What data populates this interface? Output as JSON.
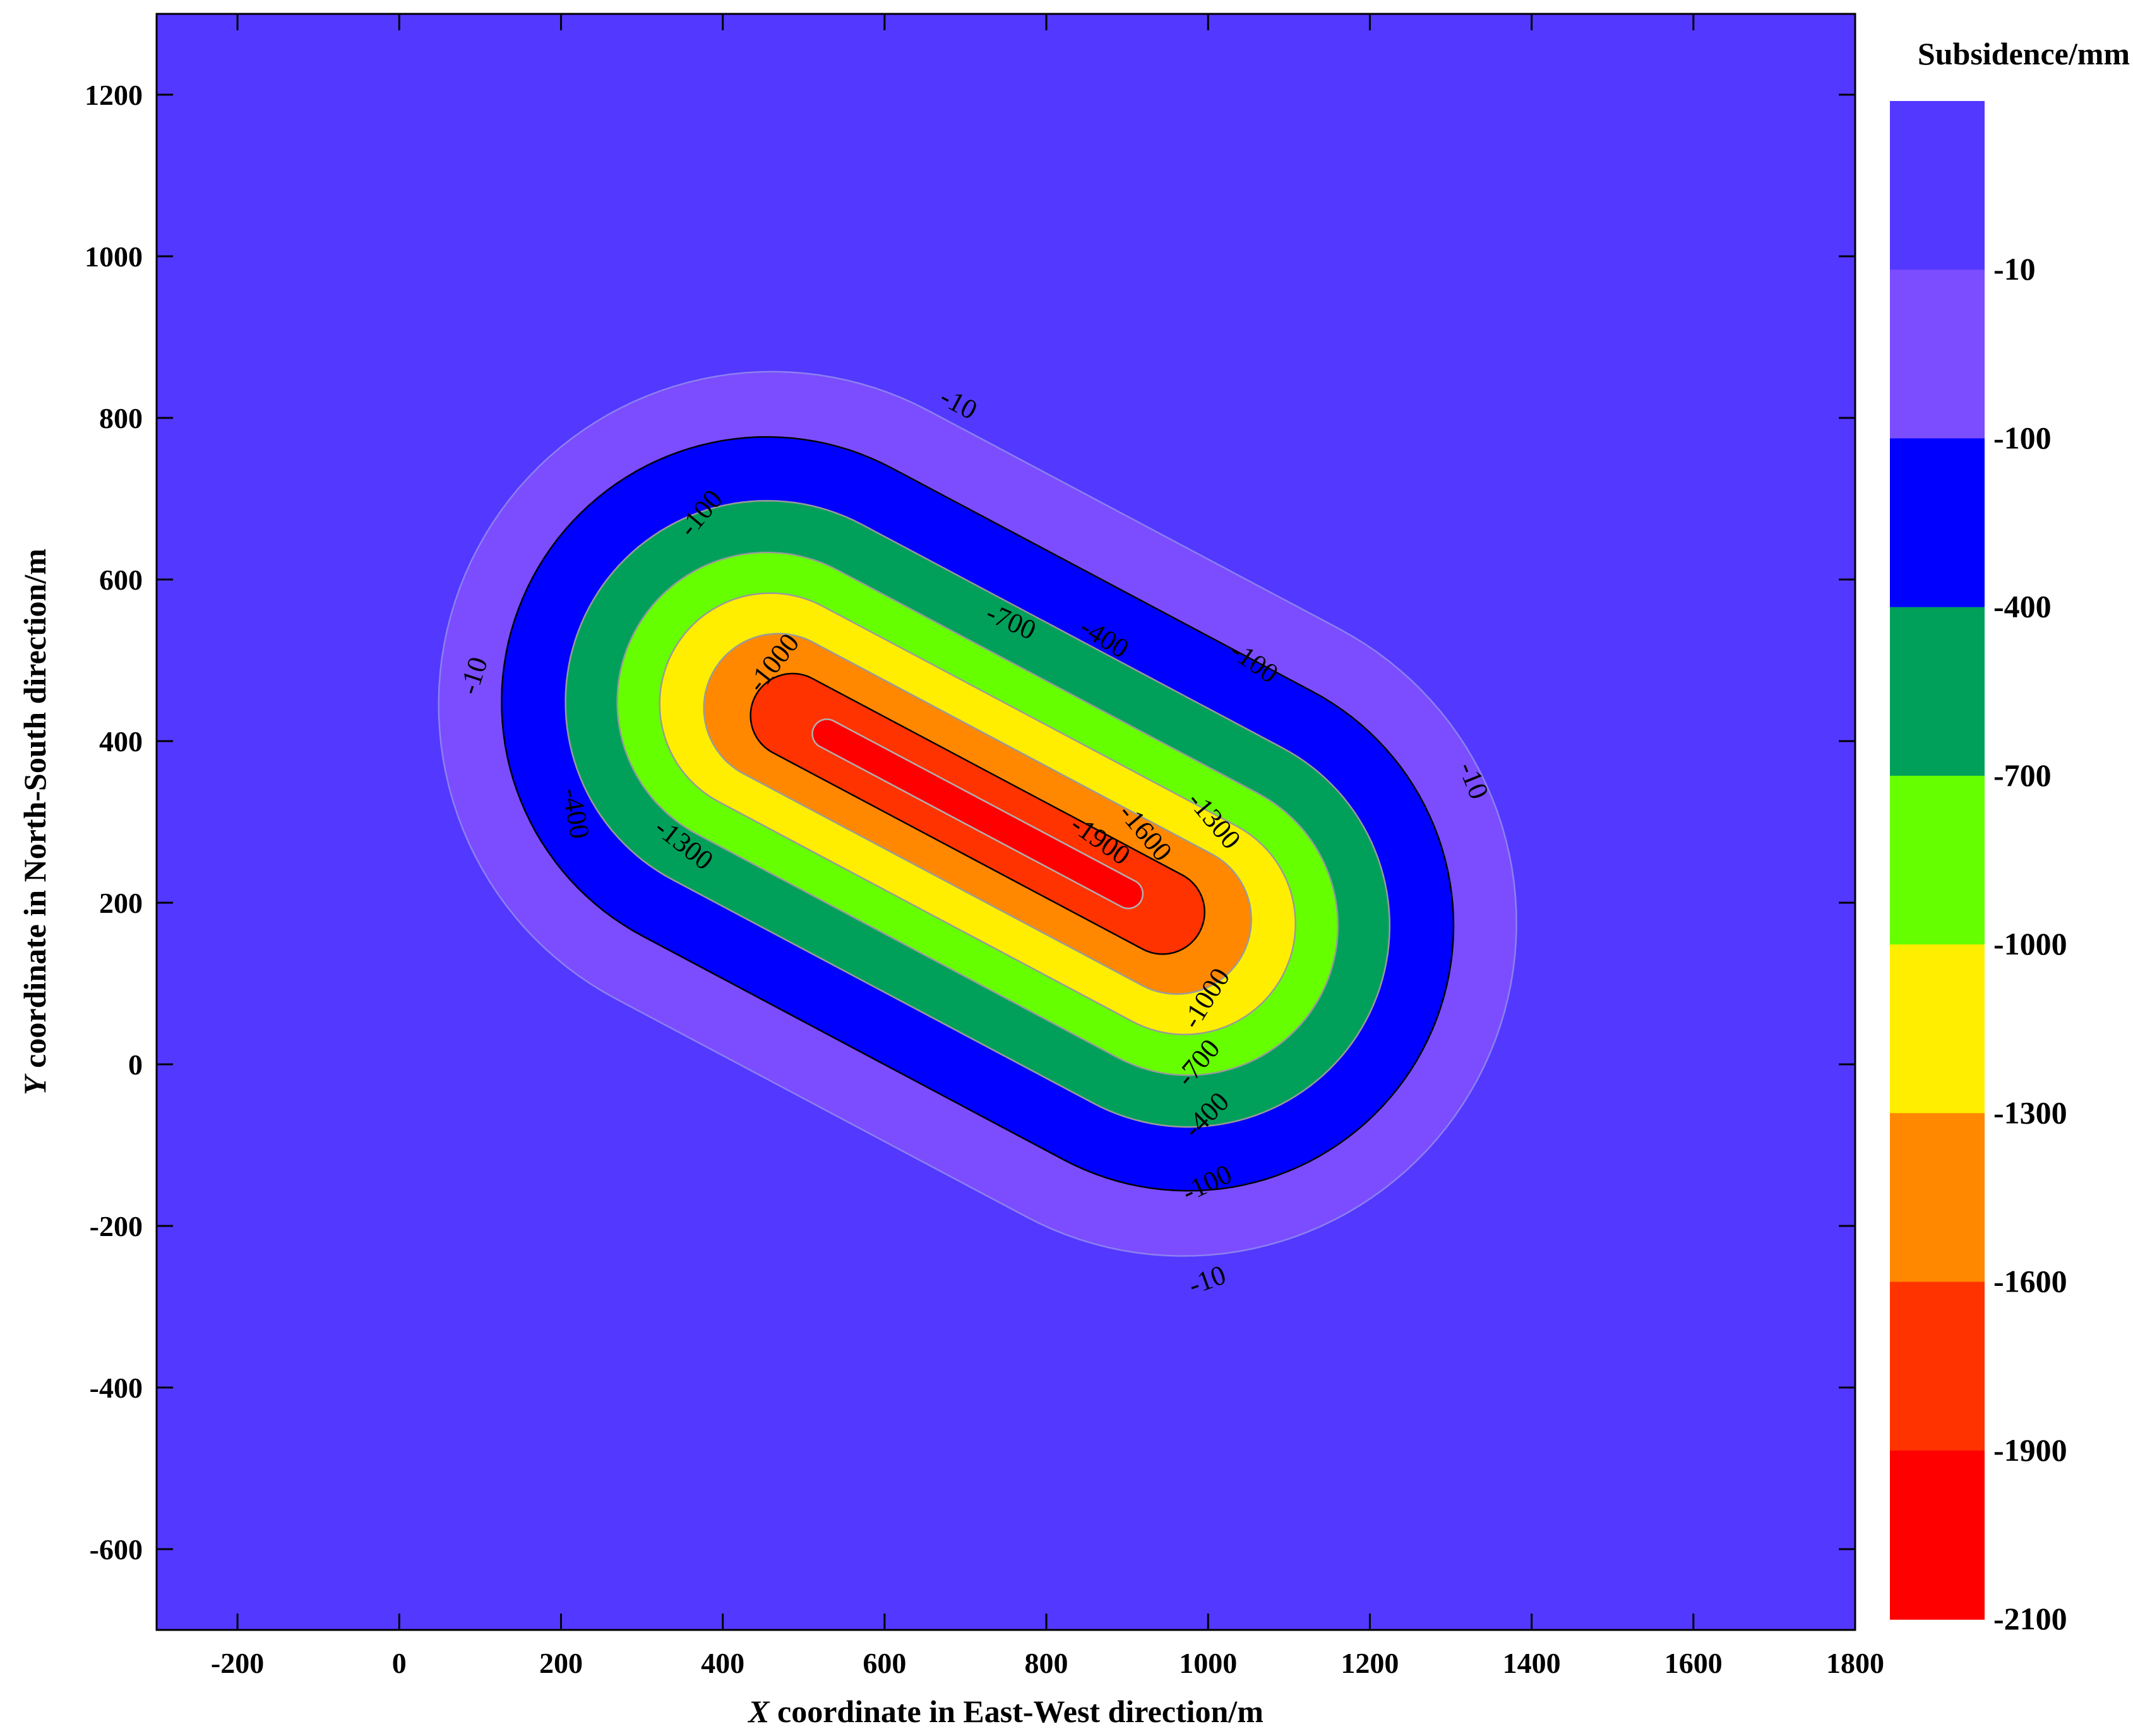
{
  "chart_data": {
    "type": "contour",
    "title": "",
    "xlabel_var": "X",
    "xlabel": " coordinate in East-West direction/m",
    "ylabel_var": "Y",
    "ylabel": " coordinate in North-South direction/m",
    "xlim": [
      -300,
      1800
    ],
    "ylim": [
      -700,
      1300
    ],
    "x_ticks": [
      -200,
      0,
      200,
      400,
      600,
      800,
      1000,
      1200,
      1400,
      1600,
      1800
    ],
    "y_ticks": [
      -600,
      -400,
      -200,
      0,
      200,
      400,
      600,
      800,
      1000,
      1200
    ],
    "subsidence_field": {
      "center_x": 715,
      "center_y": 310,
      "rotation_deg": 28,
      "description": "subsidence basin elongated along NW-SE axis"
    },
    "contours": [
      {
        "level": -10,
        "half_length": 700,
        "half_width": 412
      },
      {
        "level": -100,
        "half_length": 623,
        "half_width": 328
      },
      {
        "level": -400,
        "half_length": 544,
        "half_width": 249
      },
      {
        "level": -700,
        "half_length": 480,
        "half_width": 185
      },
      {
        "level": -1000,
        "half_length": 427,
        "half_width": 137
      },
      {
        "level": -1300,
        "half_length": 371,
        "half_width": 92
      },
      {
        "level": -1600,
        "half_length": 311,
        "half_width": 52
      },
      {
        "level": -1900,
        "half_length": 229,
        "half_width": 18
      }
    ],
    "contour_labels": [
      {
        "text": "-10",
        "x": 690,
        "y": 815,
        "angle": 28
      },
      {
        "text": "-10",
        "x": 95,
        "y": 480,
        "angle": -72
      },
      {
        "text": "-10",
        "x": 1325,
        "y": 350,
        "angle": 68
      },
      {
        "text": "-10",
        "x": 1000,
        "y": -270,
        "angle": -20
      },
      {
        "text": "-100",
        "x": 375,
        "y": 680,
        "angle": -50
      },
      {
        "text": "-100",
        "x": 1055,
        "y": 495,
        "angle": 35
      },
      {
        "text": "-100",
        "x": 1000,
        "y": -150,
        "angle": -25
      },
      {
        "text": "-400",
        "x": 870,
        "y": 525,
        "angle": 32
      },
      {
        "text": "-400",
        "x": 215,
        "y": 310,
        "angle": 80
      },
      {
        "text": "-400",
        "x": 1000,
        "y": -65,
        "angle": -45
      },
      {
        "text": "-700",
        "x": 755,
        "y": 545,
        "angle": 24
      },
      {
        "text": "-700",
        "x": 990,
        "y": 0,
        "angle": -50
      },
      {
        "text": "-1000",
        "x": 465,
        "y": 495,
        "angle": -52
      },
      {
        "text": "-1000",
        "x": 1000,
        "y": 80,
        "angle": -58
      },
      {
        "text": "-1300",
        "x": 350,
        "y": 270,
        "angle": 38
      },
      {
        "text": "-1300",
        "x": 1005,
        "y": 300,
        "angle": 50
      },
      {
        "text": "-1600",
        "x": 920,
        "y": 285,
        "angle": 50
      },
      {
        "text": "-1900",
        "x": 865,
        "y": 275,
        "angle": 35
      }
    ],
    "legend": {
      "title": "Subsidence/mm",
      "placement": "right",
      "labels": [
        "-10",
        "-100",
        "-400",
        "-700",
        "-1000",
        "-1300",
        "-1600",
        "-1900",
        "-2100"
      ],
      "colors": [
        "#5338ff",
        "#7b4dff",
        "#0000ff",
        "#00a05a",
        "#66ff00",
        "#ffee00",
        "#ff8800",
        "#ff3300",
        "#ff0000"
      ]
    },
    "band_colors": {
      "background": "#5338ff",
      "0": "#7b4dff",
      "1": "#0000ff",
      "2": "#00a05a",
      "3": "#66ff00",
      "4": "#ffee00",
      "5": "#ff8800",
      "6": "#ff3300",
      "7": "#ff0000"
    },
    "contour_line_colors": [
      "#8d7ff0",
      "#000000",
      "#9a9a9a",
      "#9a9a9a",
      "#9a9a9a",
      "#9a9a9a",
      "#000000",
      "#b0b0b0"
    ],
    "grid": false
  }
}
